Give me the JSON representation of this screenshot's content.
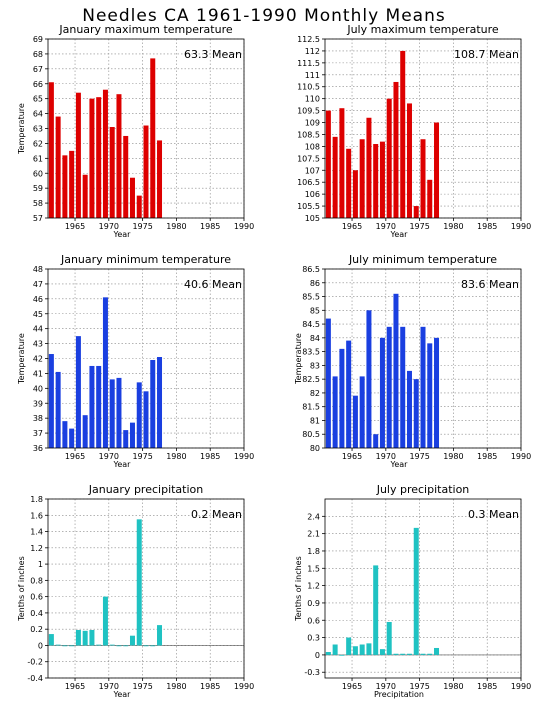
{
  "main_title": "Needles CA   1961-1990 Monthly Means",
  "chart_data": [
    {
      "type": "bar",
      "title": "January maximum temperature",
      "mean_label": "63.3 Mean",
      "ylabel": "Temperature",
      "xlabel": "Year",
      "color": "#dd0000",
      "x_ticks": [
        "1965",
        "1970",
        "1975",
        "1980",
        "1985",
        "1990"
      ],
      "y_ticks": [
        "57",
        "58",
        "59",
        "60",
        "61",
        "62",
        "63",
        "64",
        "65",
        "66",
        "67",
        "68",
        "69"
      ],
      "xlim": [
        1961,
        1990
      ],
      "ylim": [
        57,
        69
      ],
      "x": [
        1961,
        1962,
        1963,
        1964,
        1965,
        1966,
        1967,
        1968,
        1969,
        1970,
        1971,
        1972,
        1973,
        1974,
        1975,
        1976,
        1977
      ],
      "values": [
        66.1,
        63.8,
        61.2,
        61.5,
        65.4,
        59.9,
        65.0,
        65.1,
        65.6,
        63.1,
        65.3,
        62.5,
        59.7,
        58.5,
        63.2,
        67.7,
        62.2
      ],
      "grid": true
    },
    {
      "type": "bar",
      "title": "July maximum temperature",
      "mean_label": "108.7 Mean",
      "ylabel": "",
      "xlabel": "Year",
      "color": "#dd0000",
      "x_ticks": [
        "1965",
        "1970",
        "1975",
        "1980",
        "1985",
        "1990"
      ],
      "y_ticks": [
        "105",
        "105.5",
        "106",
        "106.5",
        "107",
        "107.5",
        "108",
        "108.5",
        "109",
        "109.5",
        "110",
        "110.5",
        "111",
        "111.5",
        "112",
        "112.5"
      ],
      "xlim": [
        1961,
        1990
      ],
      "ylim": [
        105,
        112.5
      ],
      "x": [
        1961,
        1962,
        1963,
        1964,
        1965,
        1966,
        1967,
        1968,
        1969,
        1970,
        1971,
        1972,
        1973,
        1974,
        1975,
        1976,
        1977
      ],
      "values": [
        109.5,
        108.4,
        109.6,
        107.9,
        107.0,
        108.3,
        109.2,
        108.1,
        108.2,
        110.0,
        110.7,
        112.0,
        109.8,
        105.5,
        108.3,
        106.6,
        109.0
      ],
      "grid": true
    },
    {
      "type": "bar",
      "title": "January minimum temperature",
      "mean_label": "40.6 Mean",
      "ylabel": "Temperature",
      "xlabel": "Year",
      "color": "#1a3fe0",
      "x_ticks": [
        "1965",
        "1970",
        "1975",
        "1980",
        "1985",
        "1990"
      ],
      "y_ticks": [
        "36",
        "37",
        "38",
        "39",
        "40",
        "41",
        "42",
        "43",
        "44",
        "45",
        "46",
        "47",
        "48"
      ],
      "xlim": [
        1961,
        1990
      ],
      "ylim": [
        36,
        48
      ],
      "x": [
        1961,
        1962,
        1963,
        1964,
        1965,
        1966,
        1967,
        1968,
        1969,
        1970,
        1971,
        1972,
        1973,
        1974,
        1975,
        1976,
        1977
      ],
      "values": [
        42.3,
        41.1,
        37.8,
        37.3,
        43.5,
        38.2,
        41.5,
        41.5,
        46.1,
        40.6,
        40.7,
        37.2,
        37.7,
        40.4,
        39.8,
        41.9,
        42.1
      ],
      "grid": true
    },
    {
      "type": "bar",
      "title": "July minimum temperature",
      "mean_label": "83.6 Mean",
      "ylabel": "Temperature",
      "xlabel": "Year",
      "color": "#1a3fe0",
      "x_ticks": [
        "1965",
        "1970",
        "1975",
        "1980",
        "1985",
        "1990"
      ],
      "y_ticks": [
        "80",
        "80.5",
        "81",
        "81.5",
        "82",
        "82.5",
        "83",
        "83.5",
        "84",
        "84.5",
        "85",
        "85.5",
        "86",
        "86.5"
      ],
      "xlim": [
        1961,
        1990
      ],
      "ylim": [
        80,
        86.5
      ],
      "x": [
        1961,
        1962,
        1963,
        1964,
        1965,
        1966,
        1967,
        1968,
        1969,
        1970,
        1971,
        1972,
        1973,
        1974,
        1975,
        1976,
        1977
      ],
      "values": [
        84.7,
        82.6,
        83.6,
        83.9,
        81.9,
        82.6,
        85.0,
        80.5,
        84.0,
        84.4,
        85.6,
        84.4,
        82.8,
        82.5,
        84.4,
        83.8,
        84.0
      ],
      "grid": true
    },
    {
      "type": "bar",
      "title": "January precipitation",
      "mean_label": "0.2 Mean",
      "ylabel": "Tenths of inches",
      "xlabel": "Year",
      "color": "#1fc2c2",
      "x_ticks": [
        "1965",
        "1970",
        "1975",
        "1980",
        "1985",
        "1990"
      ],
      "y_ticks": [
        "-0.4",
        "-0.2",
        "0",
        "0.2",
        "0.4",
        "0.6",
        "0.8",
        "1",
        "1.2",
        "1.4",
        "1.6",
        "1.8"
      ],
      "xlim": [
        1961,
        1990
      ],
      "ylim": [
        -0.4,
        1.8
      ],
      "x": [
        1961,
        1962,
        1963,
        1964,
        1965,
        1966,
        1967,
        1968,
        1969,
        1970,
        1971,
        1972,
        1973,
        1974,
        1975,
        1976,
        1977
      ],
      "values": [
        0.14,
        0.01,
        0.0,
        0.0,
        0.19,
        0.18,
        0.19,
        0.01,
        0.6,
        0.01,
        0.0,
        0.0,
        0.12,
        1.55,
        0.0,
        0.0,
        0.25
      ],
      "grid": true
    },
    {
      "type": "bar",
      "title": "July precipitation",
      "mean_label": "0.3 Mean",
      "ylabel": "Tenths of inches",
      "xlabel": "Precipitation",
      "color": "#1fc2c2",
      "x_ticks": [
        "1965",
        "1970",
        "1975",
        "1980",
        "1985",
        "1990"
      ],
      "y_ticks": [
        "-0.3",
        "0",
        "0.3",
        "0.6",
        "0.9",
        "1.2",
        "1.5",
        "1.8",
        "2.1",
        "2.4"
      ],
      "xlim": [
        1961,
        1990
      ],
      "ylim": [
        -0.4,
        2.7
      ],
      "x": [
        1961,
        1962,
        1963,
        1964,
        1965,
        1966,
        1967,
        1968,
        1969,
        1970,
        1971,
        1972,
        1973,
        1974,
        1975,
        1976,
        1977
      ],
      "values": [
        0.05,
        0.18,
        0.0,
        0.3,
        0.15,
        0.18,
        0.2,
        1.55,
        0.1,
        0.57,
        0.02,
        0.02,
        0.02,
        2.2,
        0.02,
        0.02,
        0.12
      ],
      "grid": true
    }
  ]
}
